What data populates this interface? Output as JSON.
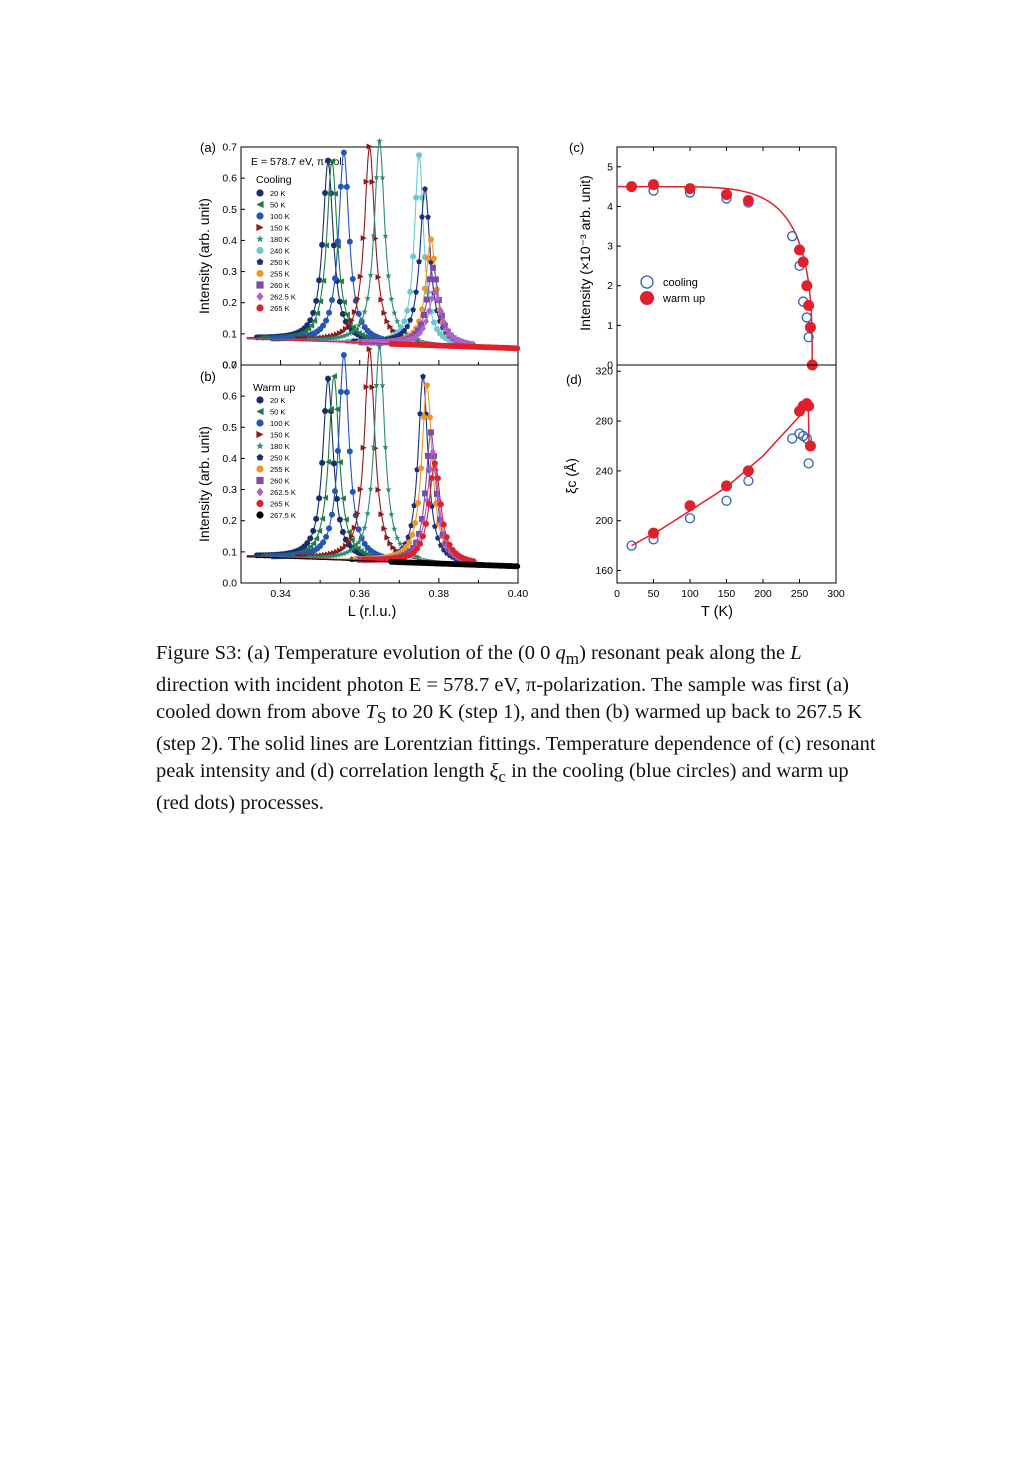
{
  "chart_data": [
    {
      "panel": "(a)",
      "type": "line",
      "subtitle": "E = 578.7 eV, π-pol.",
      "legend_title": "Cooling",
      "xlabel": "L (r.l.u.)",
      "ylabel": "Intensity (arb. unit)",
      "xlim": [
        0.33,
        0.4
      ],
      "ylim": [
        0.0,
        0.7
      ],
      "yticks": [
        "0.0",
        "0.1",
        "0.2",
        "0.3",
        "0.4",
        "0.5",
        "0.6",
        "0.7"
      ],
      "legend_position": "top-left",
      "series": [
        {
          "name": "20 K",
          "color": "#1a2c6b",
          "marker": "circle",
          "center": 0.352,
          "peak": 0.58,
          "hwhm": 0.0016
        },
        {
          "name": "50 K",
          "color": "#1f7a45",
          "marker": "triangle-left",
          "center": 0.353,
          "peak": 0.58,
          "hwhm": 0.0016
        },
        {
          "name": "100 K",
          "color": "#2456b4",
          "marker": "circle",
          "center": 0.356,
          "peak": 0.61,
          "hwhm": 0.0016
        },
        {
          "name": "150 K",
          "color": "#8b1a1a",
          "marker": "triangle-right",
          "center": 0.3625,
          "peak": 0.63,
          "hwhm": 0.0016
        },
        {
          "name": "180 K",
          "color": "#2e8b6e",
          "marker": "star",
          "center": 0.365,
          "peak": 0.65,
          "hwhm": 0.0016
        },
        {
          "name": "240 K",
          "color": "#6cc8d6",
          "marker": "circle",
          "center": 0.375,
          "peak": 0.61,
          "hwhm": 0.0014
        },
        {
          "name": "250 K",
          "color": "#1e2f7a",
          "marker": "pentagon",
          "center": 0.3765,
          "peak": 0.5,
          "hwhm": 0.0016
        },
        {
          "name": "255 K",
          "color": "#f0952a",
          "marker": "circle",
          "center": 0.378,
          "peak": 0.34,
          "hwhm": 0.0016
        },
        {
          "name": "260 K",
          "color": "#7b4ca8",
          "marker": "square",
          "center": 0.3785,
          "peak": 0.25,
          "hwhm": 0.0018
        },
        {
          "name": "262.5 K",
          "color": "#b062c8",
          "marker": "diamond",
          "center": 0.379,
          "peak": 0.17,
          "hwhm": 0.002
        },
        {
          "name": "265 K",
          "color": "#e0202a",
          "marker": "circle",
          "center": 0.379,
          "peak": 0.0,
          "hwhm": 0.002
        }
      ]
    },
    {
      "panel": "(b)",
      "type": "line",
      "legend_title": "Warm up",
      "xlabel": "L (r.l.u.)",
      "ylabel": "Intensity (arb. unit)",
      "xlim": [
        0.33,
        0.4
      ],
      "ylim": [
        0.0,
        0.7
      ],
      "xticks": [
        "0.34",
        "0.36",
        "0.38",
        "0.40"
      ],
      "yticks": [
        "0.0",
        "0.1",
        "0.2",
        "0.3",
        "0.4",
        "0.5",
        "0.6",
        "0.7"
      ],
      "legend_position": "top-left",
      "series": [
        {
          "name": "20 K",
          "color": "#1a2c6b",
          "marker": "circle",
          "center": 0.352,
          "peak": 0.58,
          "hwhm": 0.0016
        },
        {
          "name": "50 K",
          "color": "#1f7a45",
          "marker": "triangle-left",
          "center": 0.3535,
          "peak": 0.59,
          "hwhm": 0.0016
        },
        {
          "name": "100 K",
          "color": "#2456b4",
          "marker": "circle",
          "center": 0.356,
          "peak": 0.66,
          "hwhm": 0.0016
        },
        {
          "name": "150 K",
          "color": "#8b1a1a",
          "marker": "triangle-right",
          "center": 0.3625,
          "peak": 0.68,
          "hwhm": 0.0016
        },
        {
          "name": "180 K",
          "color": "#2e8b6e",
          "marker": "star",
          "center": 0.365,
          "peak": 0.69,
          "hwhm": 0.0016
        },
        {
          "name": "250 K",
          "color": "#1e2f7a",
          "marker": "pentagon",
          "center": 0.376,
          "peak": 0.6,
          "hwhm": 0.0015
        },
        {
          "name": "255 K",
          "color": "#f0952a",
          "marker": "circle",
          "center": 0.377,
          "peak": 0.57,
          "hwhm": 0.0016
        },
        {
          "name": "260 K",
          "color": "#7b4ca8",
          "marker": "square",
          "center": 0.378,
          "peak": 0.42,
          "hwhm": 0.0016
        },
        {
          "name": "262.5 K",
          "color": "#b062c8",
          "marker": "diamond",
          "center": 0.3785,
          "peak": 0.36,
          "hwhm": 0.0017
        },
        {
          "name": "265 K",
          "color": "#e0202a",
          "marker": "circle",
          "center": 0.379,
          "peak": 0.32,
          "hwhm": 0.0018
        },
        {
          "name": "267.5 K",
          "color": "#000000",
          "marker": "circle",
          "center": 0.379,
          "peak": 0.0,
          "hwhm": 0.002
        }
      ]
    },
    {
      "panel": "(c)",
      "type": "scatter",
      "xlabel": "",
      "ylabel": "Intensity (×10⁻³ arb. unit)",
      "xlim": [
        0,
        300
      ],
      "ylim": [
        0,
        5.5
      ],
      "yticks": [
        "0",
        "1",
        "2",
        "3",
        "4",
        "5"
      ],
      "legend_position": "center-left",
      "series": [
        {
          "name": "cooling",
          "color": "#2f5fb3",
          "marker": "open-circle",
          "x": [
            50,
            100,
            150,
            180,
            240,
            250,
            255,
            260,
            262.5
          ],
          "y": [
            4.4,
            4.35,
            4.2,
            4.1,
            3.25,
            2.5,
            1.6,
            1.2,
            0.7
          ]
        },
        {
          "name": "warm up",
          "color": "#e0202a",
          "marker": "filled-circle",
          "x": [
            20,
            50,
            100,
            150,
            180,
            250,
            255,
            260,
            262.5,
            265,
            267.5
          ],
          "y": [
            4.5,
            4.55,
            4.45,
            4.3,
            4.15,
            2.9,
            2.6,
            2.0,
            1.5,
            0.95,
            0.0
          ]
        }
      ],
      "fit_line": {
        "color": "#e0202a",
        "Tc": 267.5,
        "I0": 4.5
      }
    },
    {
      "panel": "(d)",
      "type": "scatter",
      "xlabel": "T (K)",
      "ylabel": "ξᴄ (Å)",
      "xlim": [
        0,
        300
      ],
      "ylim": [
        150,
        325
      ],
      "xticks": [
        "0",
        "50",
        "100",
        "150",
        "200",
        "250",
        "300"
      ],
      "yticks": [
        "160",
        "200",
        "240",
        "280",
        "320"
      ],
      "series": [
        {
          "name": "cooling",
          "color": "#2f5fb3",
          "marker": "open-circle",
          "x": [
            20,
            50,
            100,
            150,
            180,
            240,
            250,
            255,
            260,
            262.5
          ],
          "y": [
            180,
            185,
            202,
            216,
            232,
            266,
            270,
            268,
            266,
            246
          ]
        },
        {
          "name": "warm up",
          "color": "#e0202a",
          "marker": "filled-circle",
          "x": [
            50,
            100,
            150,
            180,
            250,
            255,
            260,
            262.5,
            265
          ],
          "y": [
            190,
            212,
            228,
            240,
            288,
            292,
            294,
            292,
            260
          ]
        }
      ],
      "fit_line": {
        "color": "#e0202a",
        "x": [
          20,
          60,
          100,
          150,
          200,
          250,
          262,
          263,
          265
        ],
        "y": [
          180,
          193,
          208,
          227,
          252,
          284,
          292,
          262,
          258
        ]
      }
    }
  ],
  "caption": {
    "p1": "Figure S3: (a) Temperature evolution of the (0 0 ",
    "qm_q": "q",
    "qm_m": "m",
    "p2": ") resonant peak along the ",
    "L": "L",
    "p3": " direction with incident photon E = 578.7 eV, π-polarization. The sample was first (a) cooled down from above ",
    "Ts_T": "T",
    "Ts_S": "S",
    "p4": " to 20 K (step 1), and then (b) warmed up back to 267.5 K (step 2). The solid lines are Lorentzian fittings. Temperature dependence of (c) resonant peak intensity and (d) correlation length ",
    "xi": "ξ",
    "xi_c": "c",
    "p5": " in the cooling (blue circles) and warm up (red dots) processes."
  }
}
